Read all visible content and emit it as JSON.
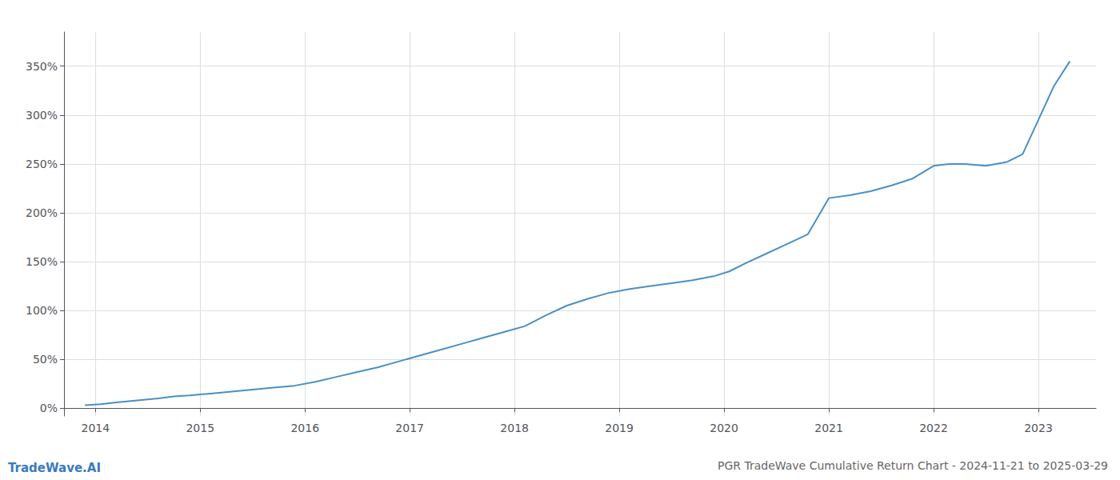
{
  "chart_data": {
    "type": "line",
    "title": "PGR TradeWave Cumulative Return Chart - 2024-11-21 to 2025-03-29",
    "annotations": [
      "TradeWave.AI"
    ],
    "color": "#4a90c4",
    "x": [
      2013.9,
      2014.05,
      2014.2,
      2014.4,
      2014.6,
      2014.75,
      2014.9,
      2015.1,
      2015.3,
      2015.5,
      2015.7,
      2015.9,
      2016.1,
      2016.3,
      2016.5,
      2016.7,
      2016.9,
      2017.1,
      2017.3,
      2017.5,
      2017.7,
      2017.9,
      2018.1,
      2018.3,
      2018.5,
      2018.7,
      2018.9,
      2019.1,
      2019.3,
      2019.5,
      2019.7,
      2019.9,
      2020.05,
      2020.2,
      2020.4,
      2020.6,
      2020.8,
      2021.0,
      2021.2,
      2021.4,
      2021.6,
      2021.8,
      2022.0,
      2022.15,
      2022.3,
      2022.5,
      2022.7,
      2022.85,
      2023.0,
      2023.15,
      2023.3
    ],
    "values": [
      3,
      4,
      6,
      8,
      10,
      12,
      13,
      15,
      17,
      19,
      21,
      23,
      27,
      32,
      37,
      42,
      48,
      54,
      60,
      66,
      72,
      78,
      84,
      95,
      105,
      112,
      118,
      122,
      125,
      128,
      131,
      135,
      140,
      148,
      158,
      168,
      178,
      215,
      218,
      222,
      228,
      235,
      248,
      250,
      250,
      248,
      252,
      260,
      295,
      330,
      355
    ],
    "xlim": [
      2013.7,
      2023.55
    ],
    "xticks": [
      2014,
      2015,
      2016,
      2017,
      2018,
      2019,
      2020,
      2021,
      2022,
      2023
    ],
    "ylim": [
      -8,
      385
    ],
    "yticks": [
      {
        "value": 0,
        "label": "0%"
      },
      {
        "value": 50,
        "label": "50%"
      },
      {
        "value": 100,
        "label": "100%"
      },
      {
        "value": 150,
        "label": "150%"
      },
      {
        "value": 200,
        "label": "200%"
      },
      {
        "value": 250,
        "label": "250%"
      },
      {
        "value": 300,
        "label": "300%"
      },
      {
        "value": 350,
        "label": "350%"
      }
    ],
    "grid": true
  }
}
